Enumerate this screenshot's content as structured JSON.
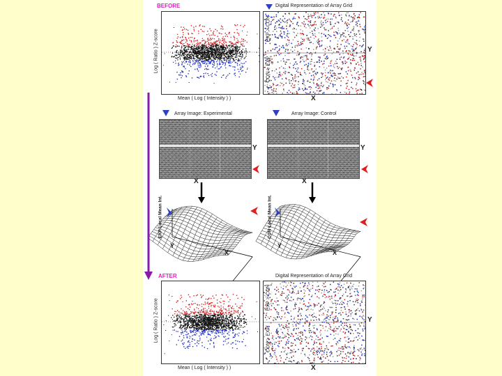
{
  "before": {
    "title": "BEFORE",
    "ma_plot": {
      "y_label": "Log ( Ratio ) Z-score",
      "x_label": "Mean ( Log ( Intensity ) )"
    },
    "grid": {
      "title": "Digital Representation of Array Grid",
      "top_label": "EXP > CON",
      "bottom_label": "CON > EXP",
      "x_axis": "X",
      "y_axis": "Y"
    }
  },
  "middle": {
    "experimental": {
      "title": "Array Image: Experimental",
      "x_axis": "X",
      "y_axis": "Y",
      "surface_z_label": "EXP Local Mean Int.",
      "surface_x": "X",
      "surface_y": "Y"
    },
    "control": {
      "title": "Array Image: Control",
      "x_axis": "X",
      "y_axis": "Y",
      "surface_z_label": "CON Local Mean Int.",
      "surface_x": "X",
      "surface_y": "Y"
    }
  },
  "after": {
    "title": "AFTER",
    "ma_plot": {
      "y_label": "Log ( Ratio ) Z-score",
      "x_label": "Mean ( Log ( Intensity ) )"
    },
    "grid": {
      "title": "Digital Representation of Array Grid",
      "top_label": "EXP > CON",
      "bottom_label": "CON > EXP",
      "x_axis": "X",
      "y_axis": "Y"
    }
  },
  "colors": {
    "red_points": "#d42020",
    "blue_points": "#2030c8",
    "black_points": "#111111",
    "arrow_purple": "#8a1aa8",
    "marker_blue": "#3040c0",
    "marker_red": "#e02020",
    "page_bg": "#ffffcc"
  }
}
